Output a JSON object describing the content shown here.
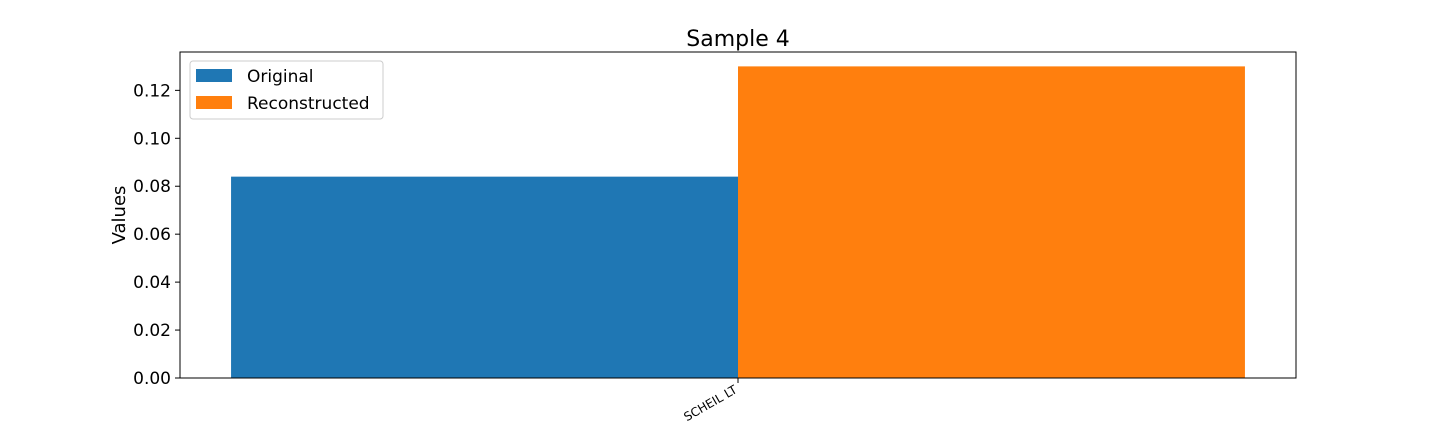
{
  "chart_data": {
    "type": "bar",
    "title": "Sample 4",
    "xlabel": "",
    "ylabel": "Values",
    "categories": [
      "SCHEIL LT"
    ],
    "series": [
      {
        "name": "Original",
        "values": [
          0.084
        ],
        "color": "#1f77b4"
      },
      {
        "name": "Reconstructed",
        "values": [
          0.13
        ],
        "color": "#ff7f0e"
      }
    ],
    "ylim": [
      0,
      0.136
    ],
    "yticks": [
      "0.00",
      "0.02",
      "0.04",
      "0.06",
      "0.08",
      "0.10",
      "0.12"
    ],
    "ytick_values": [
      0,
      0.02,
      0.04,
      0.06,
      0.08,
      0.1,
      0.12
    ],
    "legend_position": "top-left",
    "grid": false
  }
}
